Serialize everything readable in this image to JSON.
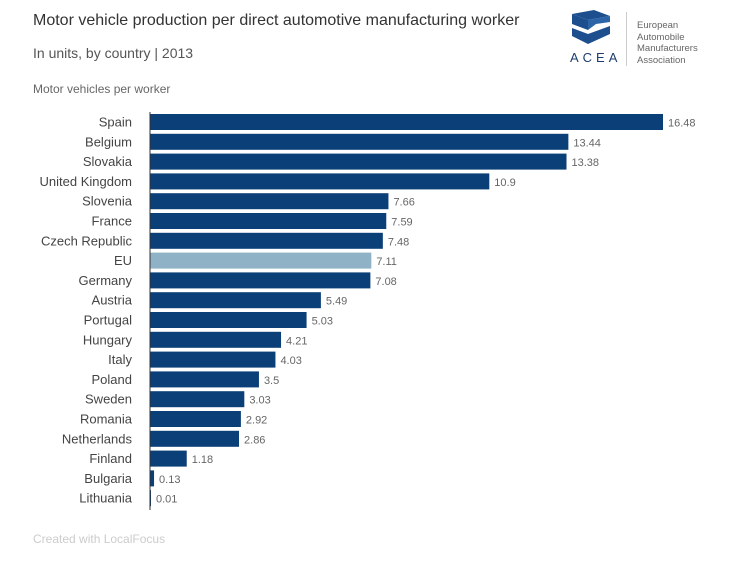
{
  "header": {
    "title": "Motor vehicle production per direct automotive manufacturing worker",
    "subtitle": "In units, by country | 2013",
    "unit_label": "Motor vehicles per worker"
  },
  "logo": {
    "acronym": "ACEA",
    "name_lines": [
      "European",
      "Automobile",
      "Manufacturers",
      "Association"
    ]
  },
  "footer": "Created with LocalFocus",
  "colors": {
    "bar": "#0b3f77",
    "highlight": "#8fb2c7",
    "axis": "#333333"
  },
  "chart_data": {
    "type": "bar",
    "orientation": "horizontal",
    "title": "Motor vehicle production per direct automotive manufacturing worker",
    "subtitle": "In units, by country | 2013",
    "xlabel": "Motor vehicles per worker",
    "categories": [
      "Spain",
      "Belgium",
      "Slovakia",
      "United Kingdom",
      "Slovenia",
      "France",
      "Czech Republic",
      "EU",
      "Germany",
      "Austria",
      "Portugal",
      "Hungary",
      "Italy",
      "Poland",
      "Sweden",
      "Romania",
      "Netherlands",
      "Finland",
      "Bulgaria",
      "Lithuania"
    ],
    "values": [
      16.48,
      13.44,
      13.38,
      10.9,
      7.66,
      7.59,
      7.48,
      7.11,
      7.08,
      5.49,
      5.03,
      4.21,
      4.03,
      3.5,
      3.03,
      2.92,
      2.86,
      1.18,
      0.13,
      0.01
    ],
    "highlight": "EU",
    "xlim": [
      0,
      16.48
    ],
    "grid": false,
    "legend": "none"
  }
}
